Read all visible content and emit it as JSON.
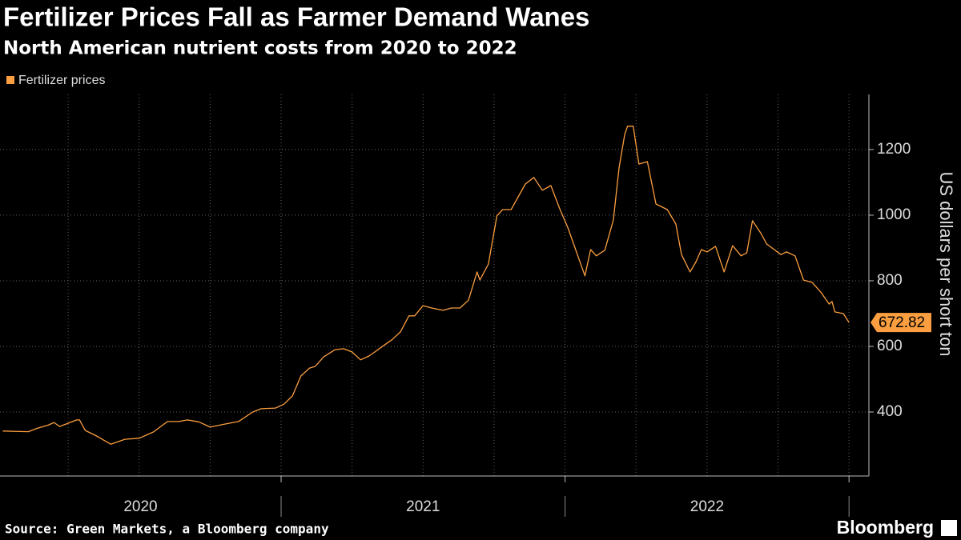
{
  "chart_data": {
    "type": "line",
    "title": "Fertilizer Prices Fall as Farmer Demand Wanes",
    "subtitle": "North American nutrient costs from 2020 to 2022",
    "y_axis_title": "US dollars per short ton",
    "source": "Source: Green Markets, a Bloomberg company",
    "branding": "Bloomberg",
    "legend": "top-left",
    "grid": true,
    "xlim": [
      2020.01,
      2023.07
    ],
    "xticks": [
      2020,
      2021,
      2022,
      2023
    ],
    "year_labels": [
      "2020",
      "2021",
      "2022"
    ],
    "x_gridlines": [
      2020.25,
      2020.5,
      2020.75,
      2021,
      2021.25,
      2021.5,
      2021.75,
      2022,
      2022.25,
      2022.5,
      2022.75,
      2023
    ],
    "ylim": [
      205,
      1368
    ],
    "yticks": [
      400,
      600,
      800,
      1000,
      1200
    ],
    "x": [
      2020.02,
      2020.11,
      2020.14,
      2020.18,
      2020.2,
      2020.22,
      2020.28,
      2020.29,
      2020.31,
      2020.35,
      2020.4,
      2020.45,
      2020.5,
      2020.55,
      2020.6,
      2020.64,
      2020.67,
      2020.71,
      2020.75,
      2020.8,
      2020.85,
      2020.9,
      2020.93,
      2020.98,
      2021.01,
      2021.04,
      2021.07,
      2021.1,
      2021.12,
      2021.15,
      2021.19,
      2021.22,
      2021.25,
      2021.28,
      2021.31,
      2021.33,
      2021.36,
      2021.39,
      2021.42,
      2021.45,
      2021.47,
      2021.5,
      2021.53,
      2021.57,
      2021.6,
      2021.63,
      2021.66,
      2021.69,
      2021.7,
      2021.73,
      2021.76,
      2021.78,
      2021.81,
      2021.86,
      2021.89,
      2021.92,
      2021.95,
      2021.98,
      2022.01,
      2022.04,
      2022.07,
      2022.09,
      2022.11,
      2022.14,
      2022.17,
      2022.19,
      2022.21,
      2022.22,
      2022.24,
      2022.26,
      2022.29,
      2022.32,
      2022.36,
      2022.39,
      2022.41,
      2022.44,
      2022.46,
      2022.48,
      2022.5,
      2022.53,
      2022.56,
      2022.59,
      2022.62,
      2022.64,
      2022.66,
      2022.69,
      2022.71,
      2022.76,
      2022.78,
      2022.81,
      2022.84,
      2022.87,
      2022.9,
      2022.93,
      2022.94,
      2022.95,
      2022.98,
      2023.0
    ],
    "series": [
      {
        "name": "Fertilizer prices",
        "color": "#fb9e3f",
        "values": [
          342,
          340,
          350,
          360,
          368,
          356,
          376,
          376,
          344,
          327,
          302,
          317,
          320,
          339,
          371,
          371,
          376,
          370,
          354,
          363,
          371,
          400,
          410,
          412,
          424,
          449,
          510,
          534,
          539,
          568,
          590,
          593,
          583,
          559,
          571,
          583,
          602,
          620,
          644,
          693,
          693,
          724,
          717,
          710,
          717,
          717,
          741,
          827,
          802,
          851,
          998,
          1017,
          1017,
          1095,
          1115,
          1076,
          1090,
          1022,
          961,
          888,
          815,
          895,
          876,
          893,
          985,
          1144,
          1246,
          1271,
          1271,
          1156,
          1163,
          1034,
          1017,
          973,
          880,
          827,
          856,
          895,
          888,
          905,
          827,
          907,
          876,
          885,
          983,
          944,
          912,
          880,
          888,
          876,
          802,
          795,
          766,
          729,
          737,
          705,
          700,
          672.82
        ]
      }
    ]
  }
}
